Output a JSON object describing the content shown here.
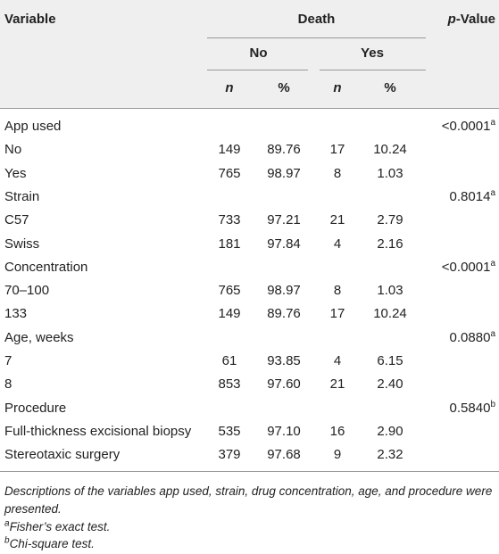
{
  "header": {
    "variable": "Variable",
    "death": "Death",
    "no": "No",
    "yes": "Yes",
    "n_no": "n",
    "pct_no": "%",
    "n_yes": "n",
    "pct_yes": "%",
    "p_value": {
      "italic": "p",
      "rest": "-Value"
    }
  },
  "rows": [
    {
      "label": "App used",
      "p": "<0.0001",
      "p_note": "a"
    },
    {
      "label": "No",
      "cells": [
        "149",
        "89.76",
        "17",
        "10.24"
      ]
    },
    {
      "label": "Yes",
      "cells": [
        "765",
        "98.97",
        "8",
        "1.03"
      ]
    },
    {
      "label": "Strain",
      "p": "0.8014",
      "p_note": "a"
    },
    {
      "label": "C57",
      "cells": [
        "733",
        "97.21",
        "21",
        "2.79"
      ]
    },
    {
      "label": "Swiss",
      "cells": [
        "181",
        "97.84",
        "4",
        "2.16"
      ]
    },
    {
      "label": "Concentration",
      "p": "<0.0001",
      "p_note": "a"
    },
    {
      "label": "70–100",
      "cells": [
        "765",
        "98.97",
        "8",
        "1.03"
      ]
    },
    {
      "label": "133",
      "cells": [
        "149",
        "89.76",
        "17",
        "10.24"
      ]
    },
    {
      "label": "Age, weeks",
      "p": "0.0880",
      "p_note": "a"
    },
    {
      "label": "7",
      "cells": [
        "61",
        "93.85",
        "4",
        "6.15"
      ]
    },
    {
      "label": "8",
      "cells": [
        "853",
        "97.60",
        "21",
        "2.40"
      ]
    },
    {
      "label": "Procedure",
      "p": "0.5840",
      "p_note": "b"
    },
    {
      "label": "Full-thickness excisional biopsy",
      "cells": [
        "535",
        "97.10",
        "16",
        "2.90"
      ]
    },
    {
      "label": "Stereotaxic surgery",
      "cells": [
        "379",
        "97.68",
        "9",
        "2.32"
      ]
    }
  ],
  "notes": {
    "description": "Descriptions of the variables app used, strain, drug concentration, age, and procedure were presented.",
    "footnotes": [
      {
        "mark": "a",
        "text": "Fisher’s exact test."
      },
      {
        "mark": "b",
        "text": "Chi-square test."
      }
    ]
  }
}
